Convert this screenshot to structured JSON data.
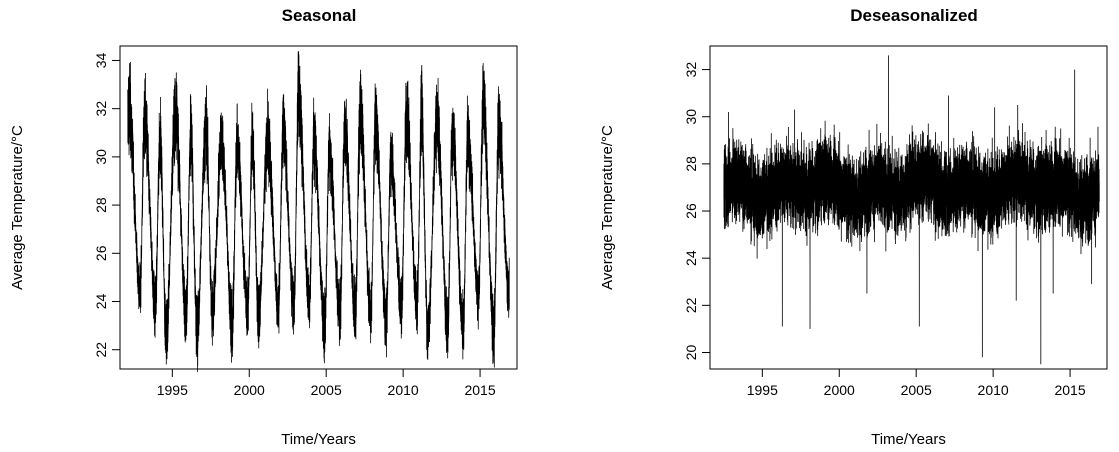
{
  "chart_data": [
    {
      "type": "line",
      "title": "Seasonal",
      "xlabel": "Time/Years",
      "ylabel": "Average Temperature/°C",
      "xlim": [
        1991.6,
        2017.4
      ],
      "ylim": [
        21.2,
        34.6
      ],
      "xticks": [
        "1995",
        "2000",
        "2005",
        "2010",
        "2015"
      ],
      "yticks": [
        "22",
        "24",
        "26",
        "28",
        "30",
        "32",
        "34"
      ],
      "x_start": 1992.1,
      "x_end": 2016.9,
      "series": [
        {
          "color": "#000000",
          "peaks": [
            {
              "x": 1992.2,
              "y": 33.4
            },
            {
              "x": 1993.2,
              "y": 33.0
            },
            {
              "x": 1994.2,
              "y": 32.1
            },
            {
              "x": 1995.2,
              "y": 33.3
            },
            {
              "x": 1996.2,
              "y": 32.2
            },
            {
              "x": 1997.2,
              "y": 32.6
            },
            {
              "x": 1998.2,
              "y": 31.8
            },
            {
              "x": 1999.2,
              "y": 31.6
            },
            {
              "x": 2000.2,
              "y": 32.1
            },
            {
              "x": 2001.2,
              "y": 32.0
            },
            {
              "x": 2002.2,
              "y": 32.5
            },
            {
              "x": 2003.2,
              "y": 34.2
            },
            {
              "x": 2004.2,
              "y": 31.9
            },
            {
              "x": 2005.2,
              "y": 31.2
            },
            {
              "x": 2006.2,
              "y": 32.5
            },
            {
              "x": 2007.2,
              "y": 33.5
            },
            {
              "x": 2008.2,
              "y": 32.8
            },
            {
              "x": 2009.2,
              "y": 30.8
            },
            {
              "x": 2010.2,
              "y": 33.2
            },
            {
              "x": 2011.2,
              "y": 33.5
            },
            {
              "x": 2012.2,
              "y": 32.9
            },
            {
              "x": 2013.2,
              "y": 32.3
            },
            {
              "x": 2014.2,
              "y": 32.0
            },
            {
              "x": 2015.2,
              "y": 33.8
            },
            {
              "x": 2016.2,
              "y": 32.5
            }
          ],
          "troughs": [
            {
              "x": 1992.9,
              "y": 23.8
            },
            {
              "x": 1993.9,
              "y": 23.0
            },
            {
              "x": 1994.6,
              "y": 21.6
            },
            {
              "x": 1995.9,
              "y": 22.6
            },
            {
              "x": 1996.6,
              "y": 21.7
            },
            {
              "x": 1997.6,
              "y": 22.6
            },
            {
              "x": 1998.9,
              "y": 22.0
            },
            {
              "x": 1999.9,
              "y": 22.8
            },
            {
              "x": 2000.6,
              "y": 22.4
            },
            {
              "x": 2001.9,
              "y": 22.8
            },
            {
              "x": 2002.9,
              "y": 22.8
            },
            {
              "x": 2003.9,
              "y": 23.1
            },
            {
              "x": 2004.9,
              "y": 21.7
            },
            {
              "x": 2005.9,
              "y": 22.5
            },
            {
              "x": 2006.9,
              "y": 22.7
            },
            {
              "x": 2007.9,
              "y": 22.4
            },
            {
              "x": 2008.9,
              "y": 22.3
            },
            {
              "x": 2009.9,
              "y": 22.9
            },
            {
              "x": 2010.9,
              "y": 23.0
            },
            {
              "x": 2011.6,
              "y": 21.4
            },
            {
              "x": 2012.9,
              "y": 22.0
            },
            {
              "x": 2013.9,
              "y": 21.9
            },
            {
              "x": 2014.9,
              "y": 23.5
            },
            {
              "x": 2015.9,
              "y": 21.6
            },
            {
              "x": 2016.9,
              "y": 23.5
            }
          ]
        }
      ]
    },
    {
      "type": "line",
      "title": "Deseasonalized",
      "xlabel": "Time/Years",
      "ylabel": "Average Temperature/°C",
      "xlim": [
        1991.6,
        2017.4
      ],
      "ylim": [
        19.3,
        33.0
      ],
      "xticks": [
        "1995",
        "2000",
        "2005",
        "2010",
        "2015"
      ],
      "yticks": [
        "20",
        "22",
        "24",
        "26",
        "28",
        "30",
        "32"
      ],
      "x_start": 1992.5,
      "x_end": 2016.9,
      "series": [
        {
          "color": "#000000",
          "level_mean": 27.0,
          "band_low": 24.2,
          "band_high": 29.6,
          "spikes": [
            {
              "x": 2003.2,
              "y": 32.6
            },
            {
              "x": 2015.3,
              "y": 32.0
            },
            {
              "x": 2007.1,
              "y": 30.9
            },
            {
              "x": 2009.3,
              "y": 19.8
            },
            {
              "x": 2013.1,
              "y": 19.5
            },
            {
              "x": 1996.3,
              "y": 21.1
            },
            {
              "x": 1998.1,
              "y": 21.0
            },
            {
              "x": 2005.2,
              "y": 21.1
            },
            {
              "x": 2011.5,
              "y": 22.2
            },
            {
              "x": 2013.9,
              "y": 22.5
            },
            {
              "x": 2001.8,
              "y": 22.5
            },
            {
              "x": 2016.4,
              "y": 22.9
            },
            {
              "x": 2010.1,
              "y": 30.4
            },
            {
              "x": 2011.6,
              "y": 30.5
            },
            {
              "x": 1997.1,
              "y": 30.3
            },
            {
              "x": 1992.8,
              "y": 30.2
            }
          ]
        }
      ]
    }
  ]
}
